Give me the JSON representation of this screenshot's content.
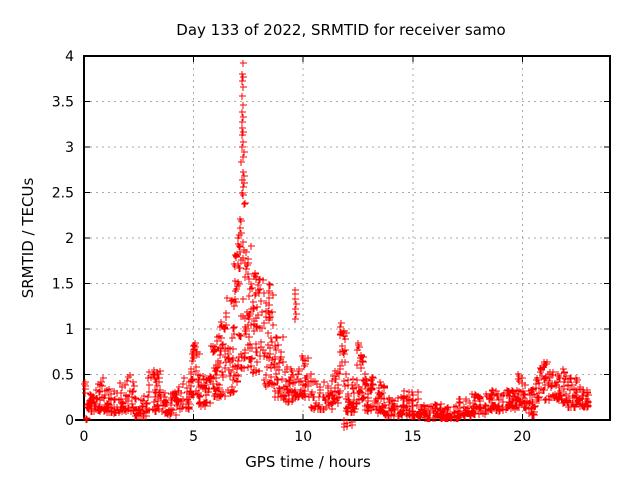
{
  "chart_data": {
    "type": "scatter",
    "title": "Day 133 of 2022, SRMTID for receiver samo",
    "xlabel": "GPS time / hours",
    "ylabel": "SRMTID / TECUs",
    "xlim": [
      0,
      24
    ],
    "ylim": [
      0,
      4
    ],
    "xticks": [
      0,
      5,
      10,
      15,
      20
    ],
    "yticks": [
      0,
      0.5,
      1,
      1.5,
      2,
      2.5,
      3,
      3.5,
      4
    ],
    "grid": true,
    "legend": false,
    "marker": "+",
    "marker_color": "#ff0000",
    "grid_color": "#a9a9a9",
    "axis_color": "#000000",
    "series": [
      {
        "name": "SRMTID",
        "points_explicit": [
          [
            0.02,
            0.4
          ],
          [
            0.03,
            0.42
          ],
          [
            0.03,
            0.37
          ],
          [
            0.05,
            0.34
          ],
          [
            0.05,
            0.3
          ],
          [
            0.07,
            0.01
          ],
          [
            0.1,
            0.02
          ],
          [
            0.12,
            0.01
          ],
          [
            0.85,
            0.46
          ],
          [
            2.08,
            0.5
          ],
          [
            2.5,
            0.04
          ],
          [
            3.18,
            0.55
          ],
          [
            3.22,
            0.5
          ],
          [
            4.95,
            0.72
          ],
          [
            5.0,
            0.78
          ],
          [
            5.02,
            0.82
          ],
          [
            5.05,
            0.85
          ],
          [
            5.07,
            0.8
          ],
          [
            5.1,
            0.75
          ],
          [
            5.03,
            0.7
          ],
          [
            4.98,
            0.68
          ],
          [
            5.88,
            0.75
          ],
          [
            5.9,
            0.8
          ],
          [
            6.2,
            1.02
          ],
          [
            6.25,
            1.08
          ],
          [
            7.25,
            3.92
          ],
          [
            7.22,
            3.8
          ],
          [
            7.25,
            3.77
          ],
          [
            7.2,
            3.73
          ],
          [
            7.26,
            3.66
          ],
          [
            7.23,
            3.56
          ],
          [
            7.24,
            3.46
          ],
          [
            7.21,
            3.39
          ],
          [
            7.25,
            3.33
          ],
          [
            7.2,
            3.28
          ],
          [
            7.23,
            3.21
          ],
          [
            7.25,
            3.17
          ],
          [
            7.22,
            3.13
          ],
          [
            7.26,
            3.06
          ],
          [
            7.21,
            3.0
          ],
          [
            7.29,
            2.95
          ],
          [
            7.24,
            2.89
          ],
          [
            7.18,
            2.84
          ],
          [
            7.26,
            2.73
          ],
          [
            7.28,
            2.68
          ],
          [
            7.22,
            2.64
          ],
          [
            7.31,
            2.6
          ],
          [
            7.24,
            2.56
          ],
          [
            7.2,
            2.5
          ],
          [
            7.27,
            2.47
          ],
          [
            7.1,
            1.9
          ],
          [
            7.15,
            2.05
          ],
          [
            7.4,
            1.85
          ],
          [
            7.45,
            1.7
          ],
          [
            7.5,
            1.6
          ],
          [
            7.55,
            1.55
          ],
          [
            7.6,
            1.5
          ],
          [
            7.75,
            1.58
          ],
          [
            7.8,
            1.6
          ],
          [
            7.85,
            1.55
          ],
          [
            8.45,
            1.5
          ],
          [
            8.45,
            1.42
          ],
          [
            8.45,
            1.34
          ],
          [
            8.45,
            1.26
          ],
          [
            8.46,
            1.18
          ],
          [
            8.44,
            1.1
          ],
          [
            9.62,
            1.43
          ],
          [
            9.64,
            1.38
          ],
          [
            9.62,
            1.33
          ],
          [
            9.66,
            1.28
          ],
          [
            9.63,
            1.22
          ],
          [
            9.67,
            1.17
          ],
          [
            9.65,
            1.11
          ],
          [
            9.95,
            0.7
          ],
          [
            10.0,
            0.66
          ],
          [
            11.72,
            1.07
          ],
          [
            11.7,
            1.02
          ],
          [
            11.85,
            -0.04
          ],
          [
            11.85,
            -0.08
          ],
          [
            11.86,
            0.0
          ],
          [
            12.02,
            -0.03
          ],
          [
            12.02,
            -0.07
          ],
          [
            12.22,
            -0.05
          ],
          [
            12.22,
            -0.02
          ],
          [
            12.52,
            0.85
          ],
          [
            12.54,
            0.8
          ],
          [
            13.5,
            0.42
          ],
          [
            14.98,
            0.31
          ],
          [
            15.02,
            0.28
          ],
          [
            20.42,
            0.05
          ],
          [
            20.42,
            0.12
          ],
          [
            20.42,
            0.2
          ],
          [
            20.42,
            0.28
          ],
          [
            20.95,
            0.58
          ],
          [
            21.0,
            0.62
          ],
          [
            22.2,
            0.45
          ]
        ],
        "density_bands": [
          [
            0.1,
            0.5,
            0.1,
            0.3,
            26,
            1.6
          ],
          [
            0.5,
            1.0,
            0.1,
            0.46,
            32,
            1.8
          ],
          [
            1.0,
            1.6,
            0.08,
            0.34,
            34,
            1.6
          ],
          [
            1.6,
            2.3,
            0.1,
            0.5,
            40,
            1.8
          ],
          [
            2.3,
            2.9,
            0.04,
            0.28,
            34,
            1.5
          ],
          [
            2.9,
            3.5,
            0.1,
            0.56,
            38,
            1.8
          ],
          [
            3.5,
            4.2,
            0.05,
            0.32,
            40,
            1.5
          ],
          [
            4.2,
            4.8,
            0.12,
            0.48,
            34,
            1.6
          ],
          [
            4.8,
            5.25,
            0.25,
            0.87,
            34,
            1.3
          ],
          [
            5.25,
            5.75,
            0.15,
            0.5,
            30,
            1.5
          ],
          [
            5.75,
            6.05,
            0.25,
            0.82,
            26,
            1.2
          ],
          [
            6.05,
            6.45,
            0.25,
            1.05,
            34,
            1.3
          ],
          [
            6.45,
            6.85,
            0.3,
            1.45,
            34,
            1.2
          ],
          [
            6.85,
            7.05,
            0.4,
            2.1,
            26,
            1.1
          ],
          [
            7.05,
            7.35,
            0.5,
            2.45,
            34,
            1.2
          ],
          [
            7.35,
            7.65,
            0.55,
            1.95,
            30,
            1.2
          ],
          [
            7.65,
            8.15,
            0.5,
            1.62,
            44,
            1.3
          ],
          [
            8.15,
            8.65,
            0.35,
            1.52,
            40,
            1.4
          ],
          [
            8.65,
            9.1,
            0.25,
            0.92,
            36,
            1.4
          ],
          [
            9.1,
            9.55,
            0.2,
            0.62,
            30,
            1.4
          ],
          [
            9.55,
            9.8,
            0.25,
            0.55,
            12,
            1.3
          ],
          [
            9.8,
            10.35,
            0.25,
            0.72,
            32,
            1.5
          ],
          [
            10.35,
            11.35,
            0.12,
            0.44,
            52,
            1.5
          ],
          [
            11.35,
            11.65,
            0.18,
            0.55,
            20,
            1.4
          ],
          [
            11.65,
            11.95,
            0.28,
            1.08,
            24,
            1.2
          ],
          [
            11.95,
            12.45,
            0.08,
            0.45,
            34,
            1.5
          ],
          [
            12.45,
            12.75,
            0.22,
            0.85,
            24,
            1.2
          ],
          [
            12.75,
            13.35,
            0.1,
            0.52,
            36,
            1.5
          ],
          [
            13.35,
            13.7,
            0.08,
            0.42,
            26,
            1.5
          ],
          [
            13.7,
            14.6,
            0.04,
            0.26,
            48,
            1.5
          ],
          [
            14.6,
            15.25,
            0.04,
            0.32,
            40,
            1.6
          ],
          [
            15.25,
            16.3,
            0.02,
            0.18,
            54,
            1.4
          ],
          [
            16.3,
            17.1,
            0.02,
            0.16,
            46,
            1.4
          ],
          [
            17.1,
            17.7,
            0.04,
            0.24,
            36,
            1.5
          ],
          [
            17.7,
            18.4,
            0.07,
            0.3,
            42,
            1.5
          ],
          [
            18.4,
            19.3,
            0.1,
            0.34,
            48,
            1.5
          ],
          [
            19.3,
            19.75,
            0.12,
            0.42,
            30,
            1.5
          ],
          [
            19.75,
            20.15,
            0.14,
            0.54,
            30,
            1.4
          ],
          [
            20.15,
            20.6,
            0.05,
            0.42,
            26,
            1.4
          ],
          [
            20.6,
            21.35,
            0.22,
            0.64,
            44,
            1.4
          ],
          [
            21.35,
            22.05,
            0.18,
            0.56,
            42,
            1.4
          ],
          [
            22.05,
            22.65,
            0.14,
            0.46,
            40,
            1.4
          ],
          [
            22.65,
            23.0,
            0.14,
            0.33,
            24,
            1.4
          ]
        ]
      }
    ]
  }
}
